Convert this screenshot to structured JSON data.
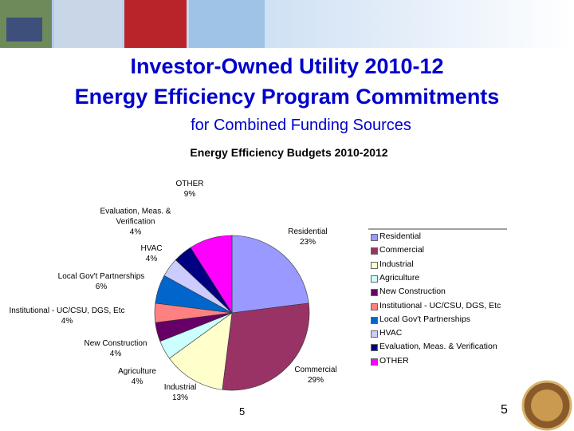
{
  "slide": {
    "title": [
      "Investor-Owned Utility 2010-12",
      "Energy Efficiency Program Commitments"
    ],
    "subtitle": "for Combined Funding Sources",
    "chart_page_number": "5",
    "slide_number": "5"
  },
  "chart_data": {
    "type": "pie",
    "title": "Energy Efficiency Budgets 2010-2012",
    "categories": [
      "Residential",
      "Commercial",
      "Industrial",
      "Agriculture",
      "New Construction",
      "Institutional - UC/CSU, DGS, Etc",
      "Local Gov't Partnerships",
      "HVAC",
      "Evaluation, Meas. & Verification",
      "OTHER"
    ],
    "values": [
      23,
      29,
      13,
      4,
      4,
      4,
      6,
      4,
      4,
      9
    ],
    "value_labels": [
      "23%",
      "29%",
      "13%",
      "4%",
      "4%",
      "4%",
      "6%",
      "4%",
      "4%",
      "9%"
    ],
    "colors": [
      "#9999ff",
      "#993366",
      "#ffffcc",
      "#ccffff",
      "#660066",
      "#ff8080",
      "#0066cc",
      "#ccccff",
      "#000080",
      "#ff00ff"
    ],
    "legend": "right"
  }
}
